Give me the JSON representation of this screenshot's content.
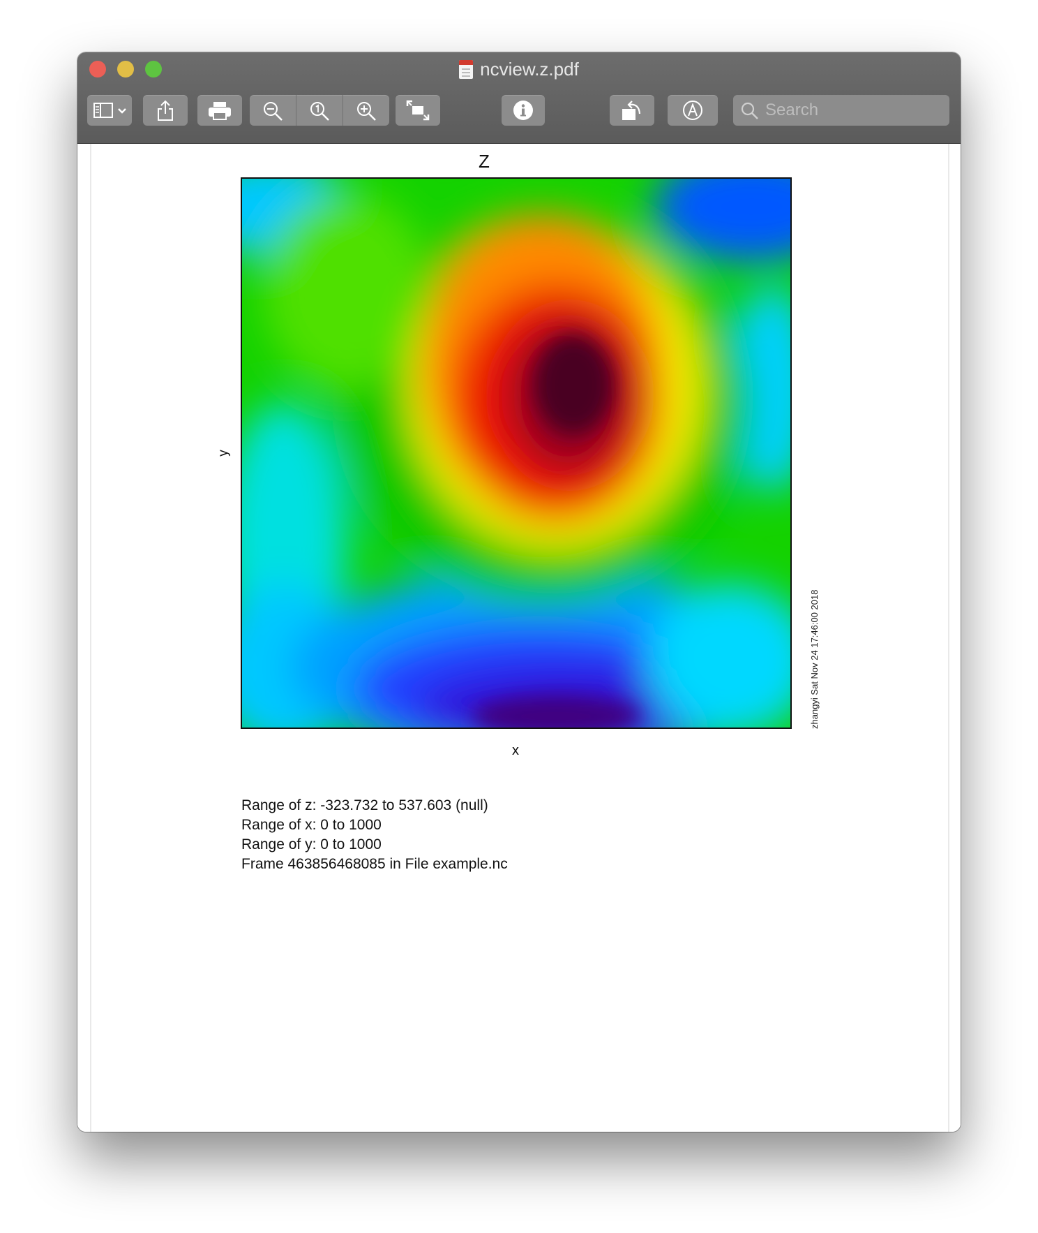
{
  "window": {
    "title": "ncview.z.pdf"
  },
  "toolbar": {
    "icons": [
      "sidebar-icon",
      "chevron-down-icon",
      "share-icon",
      "print-icon",
      "zoom-out-icon",
      "actual-size-icon",
      "zoom-in-icon",
      "fullscreen-icon",
      "info-icon",
      "rotate-icon",
      "markup-icon",
      "search-icon"
    ],
    "search_placeholder": "Search"
  },
  "plot": {
    "title": "Z",
    "xlabel": "x",
    "ylabel": "y",
    "stamp": "zhangyi Sat Nov 24 17:46:00 2018"
  },
  "chart_data": {
    "type": "heatmap",
    "title": "Z",
    "xlabel": "x",
    "ylabel": "y",
    "xlim": [
      0,
      1000
    ],
    "ylim": [
      0,
      1000
    ],
    "zlim": [
      -323.732,
      537.603
    ],
    "colormap": "rainbow (blue=low, dark red=high)"
  },
  "info": {
    "lines": [
      "Range of z: -323.732 to 537.603 (null)",
      "Range of x: 0 to 1000",
      "Range of y: 0 to 1000",
      "Frame 463856468085 in File example.nc"
    ]
  }
}
